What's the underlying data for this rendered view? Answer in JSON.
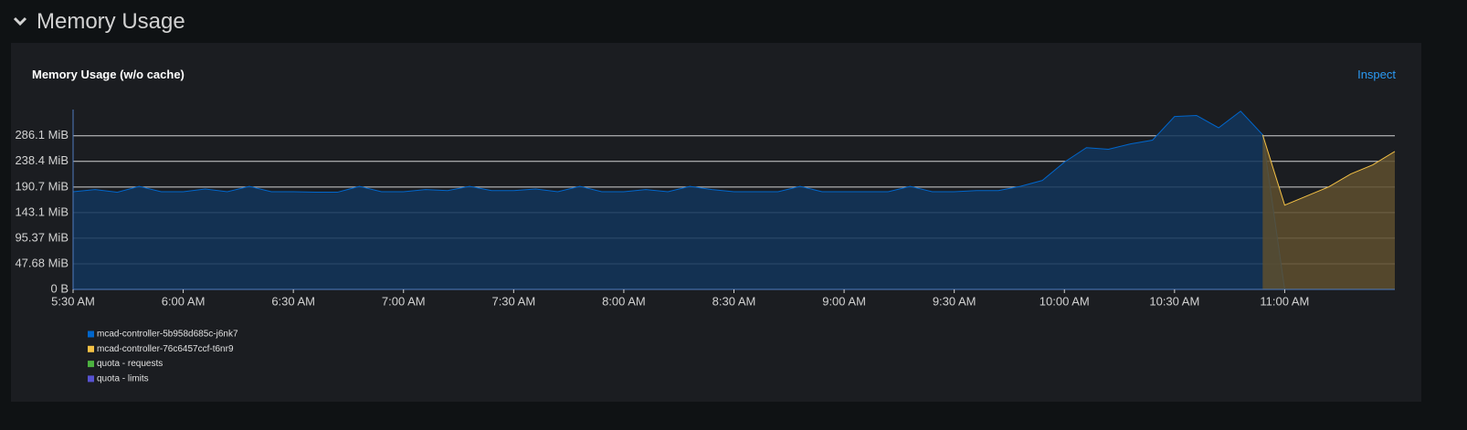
{
  "header": {
    "title": "Memory Usage"
  },
  "panel": {
    "title": "Memory Usage (w/o cache)",
    "action": "Inspect"
  },
  "chart_data": {
    "type": "area",
    "x": [
      "5:30 AM",
      "5:36 AM",
      "5:42 AM",
      "5:48 AM",
      "5:54 AM",
      "6:00 AM",
      "6:06 AM",
      "6:12 AM",
      "6:18 AM",
      "6:24 AM",
      "6:30 AM",
      "6:36 AM",
      "6:42 AM",
      "6:48 AM",
      "6:54 AM",
      "7:00 AM",
      "7:06 AM",
      "7:12 AM",
      "7:18 AM",
      "7:24 AM",
      "7:30 AM",
      "7:36 AM",
      "7:42 AM",
      "7:48 AM",
      "7:54 AM",
      "8:00 AM",
      "8:06 AM",
      "8:12 AM",
      "8:18 AM",
      "8:24 AM",
      "8:30 AM",
      "8:36 AM",
      "8:42 AM",
      "8:48 AM",
      "8:54 AM",
      "9:00 AM",
      "9:06 AM",
      "9:12 AM",
      "9:18 AM",
      "9:24 AM",
      "9:30 AM",
      "9:36 AM",
      "9:42 AM",
      "9:48 AM",
      "9:54 AM",
      "10:00 AM",
      "10:06 AM",
      "10:12 AM",
      "10:18 AM",
      "10:24 AM",
      "10:30 AM",
      "10:36 AM",
      "10:42 AM",
      "10:48 AM",
      "10:54 AM",
      "11:00 AM",
      "11:06 AM",
      "11:12 AM",
      "11:18 AM",
      "11:24 AM",
      "11:30 AM"
    ],
    "series": [
      {
        "name": "mcad-controller-5b958d685c-j6nk7",
        "color": "#0066cc",
        "fill": "#12355a",
        "values": [
          182,
          186,
          181,
          192,
          182,
          182,
          187,
          182,
          192,
          182,
          182,
          181,
          181,
          192,
          182,
          182,
          186,
          184,
          192,
          184,
          184,
          187,
          182,
          192,
          182,
          182,
          186,
          182,
          192,
          186,
          182,
          182,
          182,
          192,
          182,
          182,
          182,
          182,
          192,
          182,
          182,
          184,
          184,
          192,
          203,
          237,
          264,
          261,
          271,
          278,
          322,
          324,
          301,
          332,
          288,
          0,
          null,
          null,
          null,
          null,
          null
        ]
      },
      {
        "name": "mcad-controller-76c6457ccf-t6nr9",
        "color": "#f4c145",
        "fill": "#5e4f2e",
        "values": [
          null,
          null,
          null,
          null,
          null,
          null,
          null,
          null,
          null,
          null,
          null,
          null,
          null,
          null,
          null,
          null,
          null,
          null,
          null,
          null,
          null,
          null,
          null,
          null,
          null,
          null,
          null,
          null,
          null,
          null,
          null,
          null,
          null,
          null,
          null,
          null,
          null,
          null,
          null,
          null,
          null,
          null,
          null,
          null,
          null,
          null,
          null,
          null,
          null,
          null,
          null,
          null,
          null,
          null,
          288,
          157,
          174,
          191,
          215,
          232,
          257
        ]
      },
      {
        "name": "quota - requests",
        "color": "#4cb140",
        "values": [
          null,
          null,
          null,
          null,
          null,
          null,
          null,
          null,
          null,
          null,
          null,
          null,
          null,
          null,
          null,
          null,
          null,
          null,
          null,
          null,
          null,
          null,
          null,
          null,
          null,
          null,
          null,
          null,
          null,
          null,
          null,
          null,
          null,
          null,
          null,
          null,
          null,
          null,
          null,
          null,
          null,
          null,
          null,
          null,
          null,
          null,
          null,
          null,
          null,
          null,
          null,
          null,
          null,
          null,
          null,
          null,
          null,
          null,
          null,
          null,
          null
        ]
      },
      {
        "name": "quota - limits",
        "color": "#5752d1",
        "values": [
          null,
          null,
          null,
          null,
          null,
          null,
          null,
          null,
          null,
          null,
          null,
          null,
          null,
          null,
          null,
          null,
          null,
          null,
          null,
          null,
          null,
          null,
          null,
          null,
          null,
          null,
          null,
          null,
          null,
          null,
          null,
          null,
          null,
          null,
          null,
          null,
          null,
          null,
          null,
          null,
          null,
          null,
          null,
          null,
          null,
          null,
          null,
          null,
          null,
          null,
          null,
          null,
          null,
          null,
          null,
          null,
          null,
          null,
          null,
          null,
          null
        ]
      }
    ],
    "xlim": [
      "5:30 AM",
      "11:30 AM"
    ],
    "xticks": [
      "5:30 AM",
      "6:00 AM",
      "6:30 AM",
      "7:00 AM",
      "7:30 AM",
      "8:00 AM",
      "8:30 AM",
      "9:00 AM",
      "9:30 AM",
      "10:00 AM",
      "10:30 AM",
      "11:00 AM"
    ],
    "ylim": [
      0,
      335
    ],
    "yticks": [
      {
        "value": 0,
        "label": "0 B"
      },
      {
        "value": 47.68,
        "label": "47.68 MiB"
      },
      {
        "value": 95.37,
        "label": "95.37 MiB"
      },
      {
        "value": 143.1,
        "label": "143.1 MiB"
      },
      {
        "value": 190.7,
        "label": "190.7 MiB"
      },
      {
        "value": 238.4,
        "label": "238.4 MiB"
      },
      {
        "value": 286.1,
        "label": "286.1 MiB"
      }
    ],
    "grid": true
  }
}
